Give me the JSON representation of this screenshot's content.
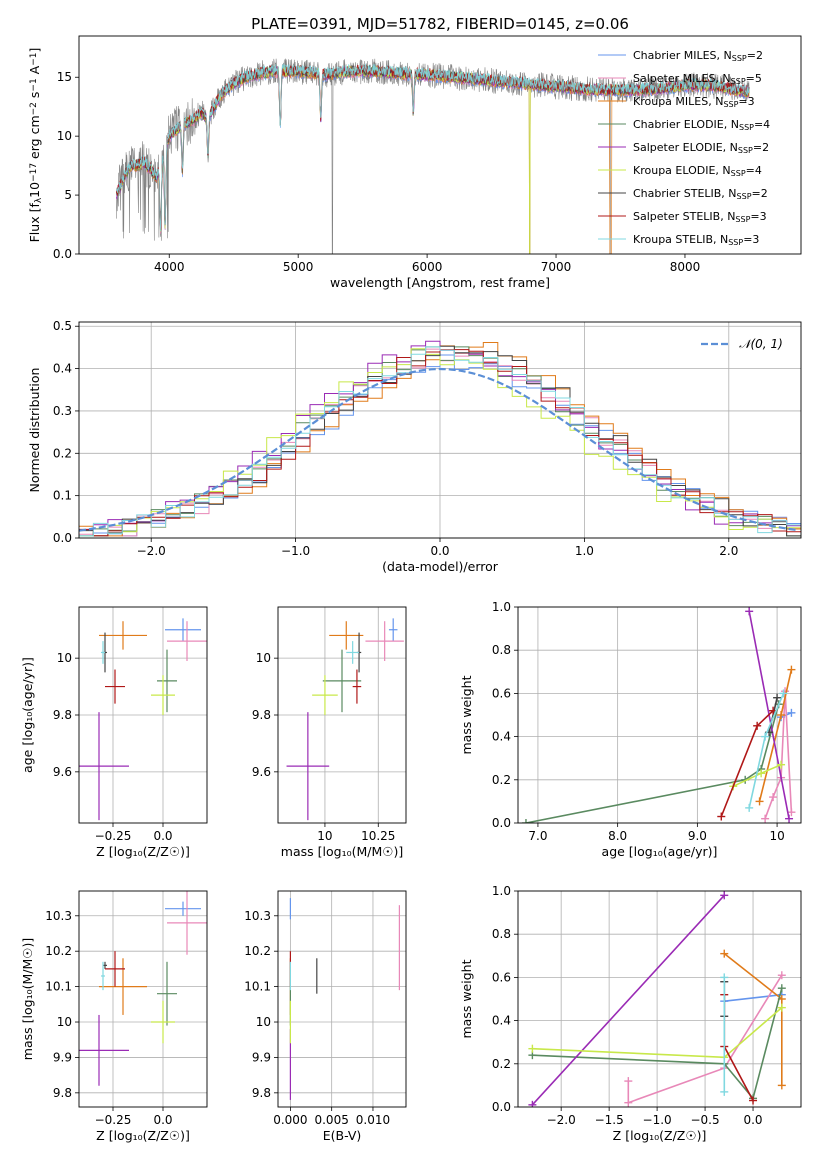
{
  "figure": {
    "title": "PLATE=0391, MJD=51782, FIBERID=0145, z=0.06"
  },
  "models": [
    {
      "label": "Chabrier MILES, N",
      "sub": "SSP",
      "n": "=2",
      "color": "#6495ed"
    },
    {
      "label": "Salpeter MILES, N",
      "sub": "SSP",
      "n": "=5",
      "color": "#e888b8"
    },
    {
      "label": "Kroupa MILES, N",
      "sub": "SSP",
      "n": "=3",
      "color": "#e07b1a"
    },
    {
      "label": "Chabrier ELODIE, N",
      "sub": "SSP",
      "n": "=4",
      "color": "#5a8a60"
    },
    {
      "label": "Salpeter ELODIE, N",
      "sub": "SSP",
      "n": "=2",
      "color": "#9a2bb5"
    },
    {
      "label": "Kroupa ELODIE, N",
      "sub": "SSP",
      "n": "=4",
      "color": "#c8e84a"
    },
    {
      "label": "Chabrier STELIB, N",
      "sub": "SSP",
      "n": "=2",
      "color": "#444444"
    },
    {
      "label": "Salpeter STELIB, N",
      "sub": "SSP",
      "n": "=3",
      "color": "#b01818"
    },
    {
      "label": "Kroupa STELIB, N",
      "sub": "SSP",
      "n": "=3",
      "color": "#80d8e0"
    }
  ],
  "chart_data": [
    {
      "id": "spectrum",
      "type": "line",
      "xlabel": "wavelength [Angstrom, rest frame]",
      "ylabel": "Flux [f_λ 10^-17 erg cm^-2 s^-1 A^-1]",
      "ylabel_parts": [
        "Flux [f",
        "λ",
        "10",
        "−17",
        " erg cm",
        "−2",
        " s",
        "−1",
        " A",
        "−1",
        "]"
      ],
      "xlim": [
        3300,
        8900
      ],
      "ylim": [
        0,
        18.5
      ],
      "xticks": [
        4000,
        5000,
        6000,
        7000,
        8000
      ],
      "yticks": [
        0,
        5,
        10,
        15
      ],
      "grid": false,
      "legend": "top-right",
      "data_color": "#808080",
      "continuum": {
        "x": [
          3590,
          3650,
          3700,
          3750,
          3800,
          3850,
          3900,
          3950,
          4000,
          4050,
          4100,
          4150,
          4200,
          4250,
          4300,
          4350,
          4400,
          4450,
          4500,
          4600,
          4700,
          4800,
          4900,
          5000,
          5200,
          5400,
          5600,
          5800,
          6000,
          6200,
          6400,
          6600,
          6800,
          7000,
          7200,
          7400,
          7600,
          7800,
          8000,
          8200,
          8400,
          8500
        ],
        "y": [
          5.0,
          6.5,
          7.5,
          7.5,
          7.8,
          7.3,
          6.5,
          8.0,
          10.0,
          10.5,
          11.0,
          11.2,
          11.5,
          12.0,
          11.5,
          12.5,
          13.5,
          14.0,
          14.5,
          15.0,
          15.3,
          15.5,
          15.5,
          15.5,
          15.2,
          15.5,
          15.5,
          15.3,
          15.2,
          15.0,
          14.8,
          14.6,
          14.4,
          14.2,
          14.0,
          13.9,
          13.9,
          14.0,
          14.3,
          14.3,
          13.9,
          13.7
        ]
      },
      "dips": [
        {
          "x": 3933,
          "y": 2.0
        },
        {
          "x": 3968,
          "y": 2.5
        },
        {
          "x": 4102,
          "y": 7.0
        },
        {
          "x": 4300,
          "y": 8.5
        },
        {
          "x": 4861,
          "y": 11.0
        },
        {
          "x": 5175,
          "y": 11.5
        },
        {
          "x": 5893,
          "y": 12.0
        }
      ],
      "spikes": [
        {
          "x": 5265,
          "y": 0
        },
        {
          "x": 6795,
          "y": 0
        },
        {
          "x": 7420,
          "y": 0
        }
      ]
    },
    {
      "id": "residuals",
      "type": "histogram",
      "xlabel": "(data-model)/error",
      "ylabel": "Normed distribution",
      "xlim": [
        -2.5,
        2.5
      ],
      "ylim": [
        0,
        0.51
      ],
      "xticks": [
        -2,
        -1,
        0,
        1,
        2
      ],
      "yticks": [
        0.0,
        0.1,
        0.2,
        0.3,
        0.4,
        0.5
      ],
      "grid": true,
      "legend": "top-right",
      "legend_label": "𝒩(0, 1)",
      "bin_width": 0.1,
      "reference_curve": "gaussian(0,1)"
    },
    {
      "id": "age-vs-Z",
      "type": "scatter",
      "xlabel": "Z [log₁₀(Z/Z☉)]",
      "ylabel": "age  [log₁₀(age/yr)]",
      "xlim": [
        -0.42,
        0.22
      ],
      "ylim": [
        9.42,
        10.18
      ],
      "xticks": [
        -0.25,
        0.0
      ],
      "yticks": [
        9.6,
        9.8,
        10.0
      ],
      "grid": true,
      "points": [
        {
          "x": 0.1,
          "xerr": 0.09,
          "y": 10.1,
          "yerr": 0.04,
          "color": "#6495ed"
        },
        {
          "x": 0.12,
          "xerr": 0.1,
          "y": 10.06,
          "yerr": 0.07,
          "color": "#e888b8"
        },
        {
          "x": -0.2,
          "xerr": 0.12,
          "y": 10.08,
          "yerr": 0.05,
          "color": "#e07b1a"
        },
        {
          "x": 0.02,
          "xerr": 0.05,
          "y": 9.92,
          "yerr": 0.11,
          "color": "#5a8a60"
        },
        {
          "x": -0.32,
          "xerr": 0.15,
          "y": 9.62,
          "yerr": 0.19,
          "color": "#9a2bb5"
        },
        {
          "x": 0.0,
          "xerr": 0.06,
          "y": 9.87,
          "yerr": 0.07,
          "color": "#c8e84a"
        },
        {
          "x": -0.29,
          "xerr": 0.01,
          "y": 10.02,
          "yerr": 0.07,
          "color": "#444444"
        },
        {
          "x": -0.24,
          "xerr": 0.05,
          "y": 9.9,
          "yerr": 0.06,
          "color": "#b01818"
        },
        {
          "x": -0.3,
          "xerr": 0.01,
          "y": 10.02,
          "yerr": 0.04,
          "color": "#80d8e0"
        }
      ]
    },
    {
      "id": "age-vs-mass",
      "type": "scatter",
      "xlabel": "mass [log₁₀(M/M☉)]",
      "ylabel": "",
      "xlim": [
        9.78,
        10.38
      ],
      "ylim": [
        9.42,
        10.18
      ],
      "xticks": [
        10.0,
        10.25
      ],
      "yticks": [
        9.6,
        9.8,
        10.0
      ],
      "grid": true,
      "points": [
        {
          "x": 10.32,
          "xerr": 0.02,
          "y": 10.1,
          "yerr": 0.04,
          "color": "#6495ed"
        },
        {
          "x": 10.28,
          "xerr": 0.09,
          "y": 10.06,
          "yerr": 0.07,
          "color": "#e888b8"
        },
        {
          "x": 10.1,
          "xerr": 0.08,
          "y": 10.08,
          "yerr": 0.05,
          "color": "#e07b1a"
        },
        {
          "x": 10.08,
          "xerr": 0.09,
          "y": 9.92,
          "yerr": 0.11,
          "color": "#5a8a60"
        },
        {
          "x": 9.92,
          "xerr": 0.1,
          "y": 9.62,
          "yerr": 0.19,
          "color": "#9a2bb5"
        },
        {
          "x": 10.0,
          "xerr": 0.06,
          "y": 9.87,
          "yerr": 0.07,
          "color": "#c8e84a"
        },
        {
          "x": 10.16,
          "xerr": 0.01,
          "y": 10.02,
          "yerr": 0.07,
          "color": "#444444"
        },
        {
          "x": 10.15,
          "xerr": 0.02,
          "y": 9.9,
          "yerr": 0.06,
          "color": "#b01818"
        },
        {
          "x": 10.13,
          "xerr": 0.03,
          "y": 10.02,
          "yerr": 0.04,
          "color": "#80d8e0"
        }
      ]
    },
    {
      "id": "massweight-vs-age",
      "type": "line",
      "xlabel": "age  [log₁₀(age/yr)]",
      "ylabel": "mass weight",
      "xlim": [
        6.75,
        10.3
      ],
      "ylim": [
        0,
        1.0
      ],
      "xticks": [
        7,
        8,
        9,
        10
      ],
      "yticks": [
        0.0,
        0.2,
        0.4,
        0.6,
        0.8,
        1.0
      ],
      "grid": true,
      "series": [
        {
          "color": "#6495ed",
          "x": [
            10.05,
            10.18
          ],
          "y": [
            0.49,
            0.51
          ]
        },
        {
          "color": "#e888b8",
          "x": [
            9.85,
            9.95,
            10.05,
            10.1,
            10.18
          ],
          "y": [
            0.02,
            0.12,
            0.21,
            0.61,
            0.05
          ]
        },
        {
          "color": "#e07b1a",
          "x": [
            9.78,
            10.05,
            10.18
          ],
          "y": [
            0.1,
            0.5,
            0.71
          ]
        },
        {
          "color": "#5a8a60",
          "x": [
            6.85,
            9.6,
            9.8,
            10.02
          ],
          "y": [
            0.0,
            0.2,
            0.25,
            0.55
          ]
        },
        {
          "color": "#9a2bb5",
          "x": [
            9.65,
            10.15
          ],
          "y": [
            0.98,
            0.02
          ]
        },
        {
          "color": "#c8e84a",
          "x": [
            9.45,
            9.8,
            10.05
          ],
          "y": [
            0.17,
            0.23,
            0.27
          ]
        },
        {
          "color": "#444444",
          "x": [
            9.9,
            10.0
          ],
          "y": [
            0.42,
            0.58
          ]
        },
        {
          "color": "#b01818",
          "x": [
            9.3,
            9.75,
            9.95
          ],
          "y": [
            0.03,
            0.45,
            0.52
          ]
        },
        {
          "color": "#80d8e0",
          "x": [
            9.65,
            9.85,
            10.08
          ],
          "y": [
            0.07,
            0.4,
            0.6
          ]
        }
      ]
    },
    {
      "id": "mass-vs-Z",
      "type": "scatter",
      "xlabel": "Z [log₁₀(Z/Z☉)]",
      "ylabel": "mass [log₁₀(M/M☉)]",
      "xlim": [
        -0.42,
        0.22
      ],
      "ylim": [
        9.76,
        10.37
      ],
      "xticks": [
        -0.25,
        0.0
      ],
      "yticks": [
        9.8,
        9.9,
        10.0,
        10.1,
        10.2,
        10.3
      ],
      "grid": true,
      "points": [
        {
          "x": 0.1,
          "xerr": 0.09,
          "y": 10.32,
          "yerr": 0.02,
          "color": "#6495ed"
        },
        {
          "x": 0.12,
          "xerr": 0.1,
          "y": 10.28,
          "yerr": 0.09,
          "color": "#e888b8"
        },
        {
          "x": -0.2,
          "xerr": 0.12,
          "y": 10.1,
          "yerr": 0.08,
          "color": "#e07b1a"
        },
        {
          "x": 0.02,
          "xerr": 0.05,
          "y": 10.08,
          "yerr": 0.09,
          "color": "#5a8a60"
        },
        {
          "x": -0.32,
          "xerr": 0.15,
          "y": 9.92,
          "yerr": 0.1,
          "color": "#9a2bb5"
        },
        {
          "x": 0.0,
          "xerr": 0.06,
          "y": 10.0,
          "yerr": 0.06,
          "color": "#c8e84a"
        },
        {
          "x": -0.29,
          "xerr": 0.01,
          "y": 10.16,
          "yerr": 0.01,
          "color": "#444444"
        },
        {
          "x": -0.24,
          "xerr": 0.05,
          "y": 10.15,
          "yerr": 0.05,
          "color": "#b01818"
        },
        {
          "x": -0.3,
          "xerr": 0.01,
          "y": 10.13,
          "yerr": 0.04,
          "color": "#80d8e0"
        }
      ]
    },
    {
      "id": "mass-vs-EBV",
      "type": "scatter",
      "xlabel": "E(B-V)",
      "ylabel": "",
      "xlim": [
        -0.0015,
        0.014
      ],
      "ylim": [
        9.76,
        10.37
      ],
      "xticks": [
        0.0,
        0.005,
        0.01
      ],
      "xticklabels": [
        "0.000",
        "0.005",
        "0.010"
      ],
      "yticks": [
        9.8,
        9.9,
        10.0,
        10.1,
        10.2,
        10.3
      ],
      "grid": true,
      "points": [
        {
          "x": 0.0,
          "xerr": 0,
          "y": 10.32,
          "yerr": 0.03,
          "color": "#6495ed"
        },
        {
          "x": 0.0132,
          "xerr": 0,
          "y": 10.21,
          "yerr": 0.12,
          "color": "#e888b8"
        },
        {
          "x": 0.0,
          "xerr": 0,
          "y": 10.1,
          "yerr": 0.08,
          "color": "#e07b1a"
        },
        {
          "x": 0.0,
          "xerr": 0,
          "y": 10.08,
          "yerr": 0.09,
          "color": "#5a8a60"
        },
        {
          "x": 0.0,
          "xerr": 0,
          "y": 9.88,
          "yerr": 0.1,
          "color": "#9a2bb5"
        },
        {
          "x": 0.0,
          "xerr": 0,
          "y": 10.0,
          "yerr": 0.06,
          "color": "#c8e84a"
        },
        {
          "x": 0.0032,
          "xerr": 0,
          "y": 10.13,
          "yerr": 0.05,
          "color": "#444444"
        },
        {
          "x": 0.0,
          "xerr": 0,
          "y": 10.15,
          "yerr": 0.05,
          "color": "#b01818"
        },
        {
          "x": 0.0,
          "xerr": 0,
          "y": 10.13,
          "yerr": 0.04,
          "color": "#80d8e0"
        }
      ]
    },
    {
      "id": "massweight-vs-Z",
      "type": "line",
      "xlabel": "Z [log₁₀(Z/Z☉)]",
      "ylabel": "mass weight",
      "xlim": [
        -2.45,
        0.5
      ],
      "ylim": [
        0,
        1.0
      ],
      "xticks": [
        -2.0,
        -1.5,
        -1.0,
        -0.5,
        0.0
      ],
      "xticklabels": [
        "−2.0",
        "−1.5",
        "−1.0",
        "−0.5",
        "0.0"
      ],
      "yticks": [
        0.0,
        0.2,
        0.4,
        0.6,
        0.8,
        1.0
      ],
      "grid": true,
      "series": [
        {
          "color": "#6495ed",
          "x": [
            -0.3,
            0.3
          ],
          "y": [
            0.49,
            0.52
          ]
        },
        {
          "color": "#e888b8",
          "x": [
            -1.3,
            -1.3,
            -0.3,
            0.3
          ],
          "y": [
            0.12,
            0.02,
            0.18,
            0.61
          ]
        },
        {
          "color": "#e07b1a",
          "x": [
            -0.3,
            0.3,
            0.3
          ],
          "y": [
            0.71,
            0.5,
            0.1
          ]
        },
        {
          "color": "#5a8a60",
          "x": [
            -2.3,
            -0.3,
            0.0,
            0.3
          ],
          "y": [
            0.24,
            0.2,
            0.04,
            0.55
          ]
        },
        {
          "color": "#9a2bb5",
          "x": [
            -2.3,
            -0.3
          ],
          "y": [
            0.01,
            0.98
          ]
        },
        {
          "color": "#c8e84a",
          "x": [
            -2.3,
            -0.3,
            0.3
          ],
          "y": [
            0.27,
            0.23,
            0.46
          ]
        },
        {
          "color": "#444444",
          "x": [
            -0.3,
            -0.3
          ],
          "y": [
            0.42,
            0.58
          ]
        },
        {
          "color": "#b01818",
          "x": [
            -0.3,
            -0.3,
            0.0
          ],
          "y": [
            0.52,
            0.28,
            0.03
          ]
        },
        {
          "color": "#80d8e0",
          "x": [
            -0.3,
            -0.3
          ],
          "y": [
            0.07,
            0.6
          ]
        }
      ]
    }
  ]
}
